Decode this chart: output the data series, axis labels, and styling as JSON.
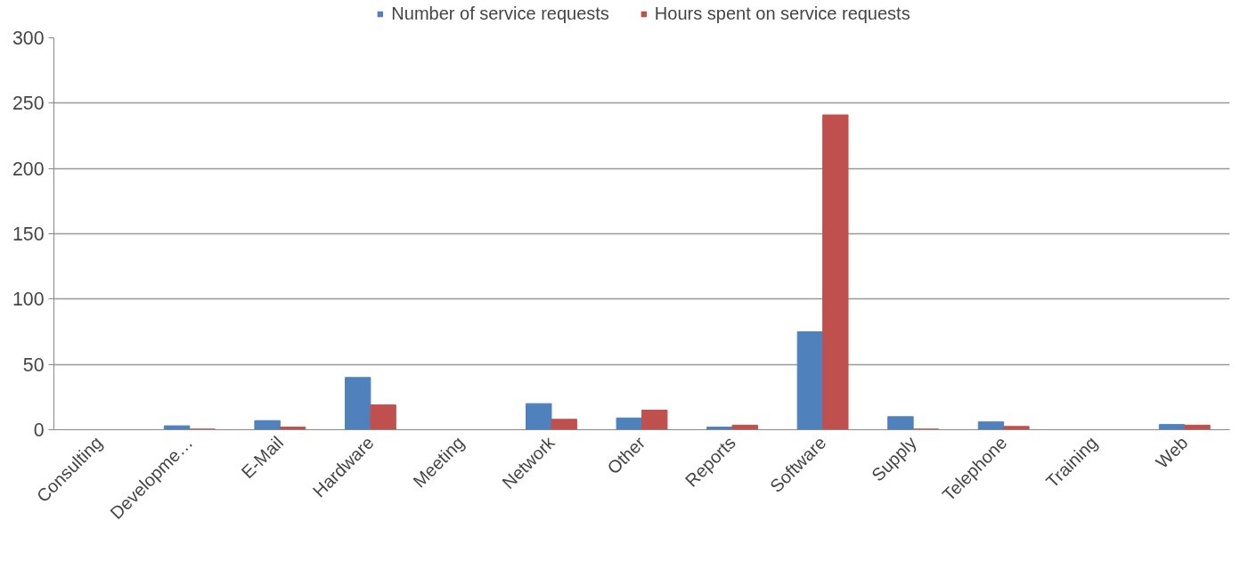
{
  "chart_data": {
    "type": "bar",
    "categories": [
      "Consulting",
      "Developme…",
      "E-Mail",
      "Hardware",
      "Meeting",
      "Network",
      "Other",
      "Reports",
      "Software",
      "Supply",
      "Telephone",
      "Training",
      "Web"
    ],
    "series": [
      {
        "name": "Number of service requests",
        "color": "#4f81bd",
        "values": [
          0,
          3,
          7,
          40,
          0,
          20,
          9,
          2,
          75,
          10,
          6,
          0,
          4
        ]
      },
      {
        "name": "Hours spent on service requests",
        "color": "#c0504d",
        "values": [
          0,
          0.5,
          2,
          19,
          0,
          8,
          15,
          3.5,
          241,
          0.5,
          2.5,
          0,
          3.5
        ]
      }
    ],
    "ylim": [
      0,
      300
    ],
    "yticks": [
      0,
      50,
      100,
      150,
      200,
      250,
      300
    ],
    "grid": "y",
    "legend": "top"
  }
}
